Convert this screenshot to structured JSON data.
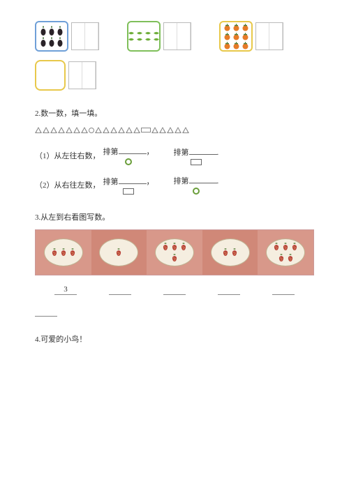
{
  "q1": {
    "items": [
      {
        "border": "#6fa0d8",
        "rows": [
          [
            1,
            1,
            1
          ],
          [
            1,
            1,
            1
          ]
        ],
        "fruit": "eggplant"
      },
      {
        "border": "#7fbf5a",
        "rows": [
          [
            1,
            1,
            1,
            1
          ],
          [
            1,
            1,
            1,
            1
          ]
        ],
        "fruit": "cucumber"
      },
      {
        "border": "#e8c84a",
        "rows": [
          [
            1,
            1,
            1
          ],
          [
            1,
            1,
            1
          ],
          [
            1,
            1,
            1
          ]
        ],
        "fruit": "persimmon"
      },
      {
        "border": "#e8c84a",
        "rows": [],
        "fruit": "empty"
      }
    ]
  },
  "q2": {
    "title": "2.数一数，填一填。",
    "shapes": [
      "t",
      "t",
      "t",
      "t",
      "t",
      "t",
      "t",
      "c",
      "t",
      "t",
      "t",
      "t",
      "t",
      "t",
      "r",
      "t",
      "t",
      "t",
      "t",
      "t"
    ],
    "line1_prefix": "（1）从左往右数，",
    "line2_prefix": "（2）从右往左数，",
    "pai": "排第",
    "comma": "，",
    "dot": "."
  },
  "q3": {
    "title": "3.从左到右看图写数。",
    "plates": [
      3,
      1,
      4,
      2,
      5
    ],
    "first_answer": "3"
  },
  "q4": {
    "title": "4.可爱的小鸟！"
  },
  "colors": {
    "eggplant_body": "#2a2328",
    "eggplant_cap": "#3a6b2f",
    "cuc": "#6fae3a",
    "pers": "#e67b28",
    "pers_leaf": "#4f7b33",
    "berry_red": "#b8433a",
    "berry_leaf": "#5a7f3c"
  }
}
